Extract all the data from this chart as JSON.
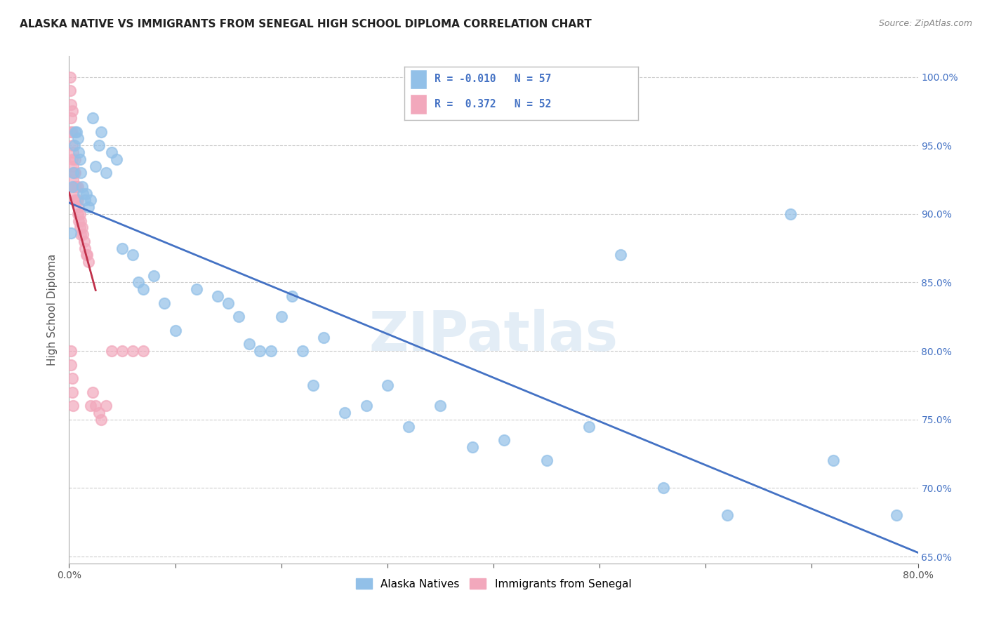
{
  "title": "ALASKA NATIVE VS IMMIGRANTS FROM SENEGAL HIGH SCHOOL DIPLOMA CORRELATION CHART",
  "source": "Source: ZipAtlas.com",
  "ylabel": "High School Diploma",
  "xlim": [
    0.0,
    0.8
  ],
  "ylim": [
    0.645,
    1.015
  ],
  "alaska_R": "-0.010",
  "alaska_N": "57",
  "senegal_R": "0.372",
  "senegal_N": "52",
  "alaska_color": "#92C0E8",
  "senegal_color": "#F2A8BC",
  "alaska_line_color": "#4472C4",
  "senegal_line_color": "#C0304A",
  "background_color": "#FFFFFF",
  "grid_color": "#CCCCCC",
  "watermark": "ZIPatlas",
  "alaska_x": [
    0.002,
    0.003,
    0.004,
    0.005,
    0.006,
    0.007,
    0.008,
    0.009,
    0.01,
    0.011,
    0.012,
    0.013,
    0.015,
    0.016,
    0.018,
    0.02,
    0.022,
    0.025,
    0.028,
    0.03,
    0.035,
    0.04,
    0.045,
    0.05,
    0.06,
    0.065,
    0.07,
    0.08,
    0.09,
    0.1,
    0.12,
    0.14,
    0.15,
    0.16,
    0.17,
    0.18,
    0.19,
    0.2,
    0.21,
    0.22,
    0.23,
    0.24,
    0.26,
    0.28,
    0.3,
    0.32,
    0.35,
    0.38,
    0.41,
    0.45,
    0.49,
    0.52,
    0.56,
    0.62,
    0.68,
    0.72,
    0.78
  ],
  "alaska_y": [
    0.886,
    0.92,
    0.93,
    0.95,
    0.96,
    0.96,
    0.955,
    0.945,
    0.94,
    0.93,
    0.92,
    0.915,
    0.91,
    0.915,
    0.905,
    0.91,
    0.97,
    0.935,
    0.95,
    0.96,
    0.93,
    0.945,
    0.94,
    0.875,
    0.87,
    0.85,
    0.845,
    0.855,
    0.835,
    0.815,
    0.845,
    0.84,
    0.835,
    0.825,
    0.805,
    0.8,
    0.8,
    0.825,
    0.84,
    0.8,
    0.775,
    0.81,
    0.755,
    0.76,
    0.775,
    0.745,
    0.76,
    0.73,
    0.735,
    0.72,
    0.745,
    0.87,
    0.7,
    0.68,
    0.9,
    0.72,
    0.68
  ],
  "senegal_x": [
    0.001,
    0.001,
    0.002,
    0.002,
    0.002,
    0.003,
    0.003,
    0.003,
    0.003,
    0.004,
    0.004,
    0.004,
    0.004,
    0.005,
    0.005,
    0.005,
    0.006,
    0.006,
    0.006,
    0.007,
    0.007,
    0.008,
    0.008,
    0.008,
    0.009,
    0.009,
    0.01,
    0.01,
    0.011,
    0.011,
    0.012,
    0.013,
    0.014,
    0.015,
    0.016,
    0.017,
    0.018,
    0.02,
    0.022,
    0.025,
    0.028,
    0.03,
    0.035,
    0.04,
    0.05,
    0.06,
    0.07,
    0.002,
    0.002,
    0.003,
    0.003,
    0.004
  ],
  "senegal_y": [
    1.0,
    0.99,
    0.98,
    0.97,
    0.96,
    0.975,
    0.96,
    0.95,
    0.94,
    0.945,
    0.935,
    0.925,
    0.915,
    0.93,
    0.92,
    0.91,
    0.94,
    0.93,
    0.92,
    0.92,
    0.91,
    0.92,
    0.91,
    0.9,
    0.905,
    0.895,
    0.9,
    0.89,
    0.895,
    0.885,
    0.89,
    0.885,
    0.88,
    0.875,
    0.87,
    0.87,
    0.865,
    0.76,
    0.77,
    0.76,
    0.755,
    0.75,
    0.76,
    0.8,
    0.8,
    0.8,
    0.8,
    0.8,
    0.79,
    0.78,
    0.77,
    0.76
  ]
}
